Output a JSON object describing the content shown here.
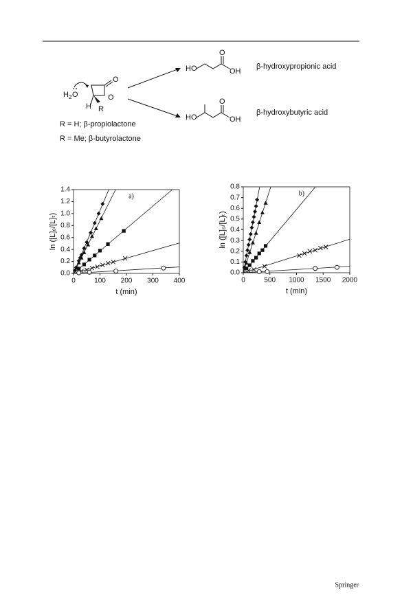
{
  "scheme": {
    "water": {
      "h": "H",
      "sub": "2",
      "o": "O"
    },
    "lactone": {
      "carbonyl_o": "O",
      "ring_o": "O",
      "h": "H",
      "r": "R"
    },
    "conditions": [
      "R = H; β-propiolactone",
      "R = Me; β-butyrolactone"
    ],
    "products": [
      {
        "ho": "HO",
        "o": "O",
        "oh": "OH",
        "name": "β-hydroxypropionic acid"
      },
      {
        "ho": "HO",
        "o": "O",
        "oh": "OH",
        "name": "β-hydroxybutyric acid"
      }
    ]
  },
  "chart_data": [
    {
      "type": "scatter",
      "annotation": "a)",
      "x_label": "t  (min)",
      "y_label": "ln ([L]₀/[L]ₜ)",
      "xlim": [
        0,
        400
      ],
      "xticks": [
        0,
        100,
        200,
        300,
        400
      ],
      "ylim": [
        0,
        1.4
      ],
      "yticks": [
        {
          "value": 0,
          "label": "0.0"
        },
        0.2,
        0.4,
        0.6,
        0.8,
        {
          "value": 1,
          "label": "1.0"
        },
        1.2,
        1.4
      ],
      "trendlines": true,
      "series": [
        {
          "marker": "diamond",
          "color": "#111111",
          "trendline_slope": 0.0105,
          "x": [
            5,
            10,
            20,
            25,
            30,
            40,
            50,
            65,
            80,
            95,
            110
          ],
          "values": [
            0.05,
            0.1,
            0.21,
            0.26,
            0.31,
            0.42,
            0.52,
            0.68,
            0.84,
            1.0,
            1.16
          ]
        },
        {
          "marker": "triangle",
          "color": "#111111",
          "trendline_slope": 0.0088,
          "x": [
            10,
            20,
            30,
            40,
            55,
            70,
            85,
            105
          ],
          "values": [
            0.09,
            0.18,
            0.26,
            0.35,
            0.48,
            0.62,
            0.75,
            0.92
          ]
        },
        {
          "marker": "square",
          "color": "#111111",
          "trendline_slope": 0.00375,
          "x": [
            20,
            40,
            60,
            80,
            100,
            130,
            190
          ],
          "values": [
            0.08,
            0.15,
            0.23,
            0.3,
            0.38,
            0.49,
            0.71
          ]
        },
        {
          "marker": "cross",
          "color": "#111111",
          "trendline_slope": 0.00127,
          "x": [
            30,
            50,
            70,
            90,
            110,
            130,
            150,
            195
          ],
          "values": [
            0.04,
            0.06,
            0.09,
            0.11,
            0.14,
            0.17,
            0.19,
            0.25
          ]
        },
        {
          "marker": "circle",
          "color": "#111111",
          "trendline_slope": 0.00027,
          "x": [
            20,
            60,
            160,
            340
          ],
          "values": [
            0.01,
            0.02,
            0.04,
            0.09
          ]
        }
      ]
    },
    {
      "type": "scatter",
      "annotation": "b)",
      "x_label": "t  (min)",
      "y_label": "ln ([L]₀/[L]ₜ)",
      "xlim": [
        0,
        2000
      ],
      "xticks": [
        0,
        500,
        1000,
        1500,
        2000
      ],
      "ylim": [
        0,
        0.8
      ],
      "yticks": [
        {
          "value": 0,
          "label": "0.0"
        },
        0.1,
        0.2,
        0.3,
        0.4,
        0.5,
        0.6,
        0.7,
        0.8
      ],
      "trendlines": true,
      "series": [
        {
          "marker": "diamond",
          "color": "#111111",
          "trendline_slope": 0.0026,
          "x": [
            20,
            40,
            60,
            80,
            100,
            120,
            140,
            160,
            180,
            200,
            220,
            240,
            260
          ],
          "values": [
            0.05,
            0.1,
            0.16,
            0.21,
            0.26,
            0.31,
            0.36,
            0.42,
            0.47,
            0.52,
            0.57,
            0.62,
            0.68
          ]
        },
        {
          "marker": "triangle",
          "color": "#111111",
          "trendline_slope": 0.00155,
          "x": [
            30,
            60,
            120,
            180,
            240,
            300,
            360,
            420
          ],
          "values": [
            0.05,
            0.09,
            0.19,
            0.28,
            0.37,
            0.47,
            0.56,
            0.65
          ]
        },
        {
          "marker": "square",
          "color": "#111111",
          "trendline_slope": 0.00059,
          "x": [
            60,
            120,
            180,
            240,
            300,
            360,
            420
          ],
          "values": [
            0.04,
            0.07,
            0.11,
            0.14,
            0.18,
            0.21,
            0.25
          ]
        },
        {
          "marker": "cross",
          "color": "#111111",
          "trendline_slope": 0.000156,
          "x": [
            100,
            200,
            400,
            1050,
            1150,
            1250,
            1350,
            1450,
            1550
          ],
          "values": [
            0.02,
            0.03,
            0.06,
            0.16,
            0.18,
            0.2,
            0.21,
            0.23,
            0.24
          ]
        },
        {
          "marker": "circle",
          "color": "#111111",
          "trendline_slope": 3e-05,
          "x": [
            300,
            450,
            1350,
            1760
          ],
          "values": [
            0.01,
            0.01,
            0.04,
            0.05
          ]
        }
      ]
    }
  ],
  "footer": {
    "publisher": "Springer"
  }
}
